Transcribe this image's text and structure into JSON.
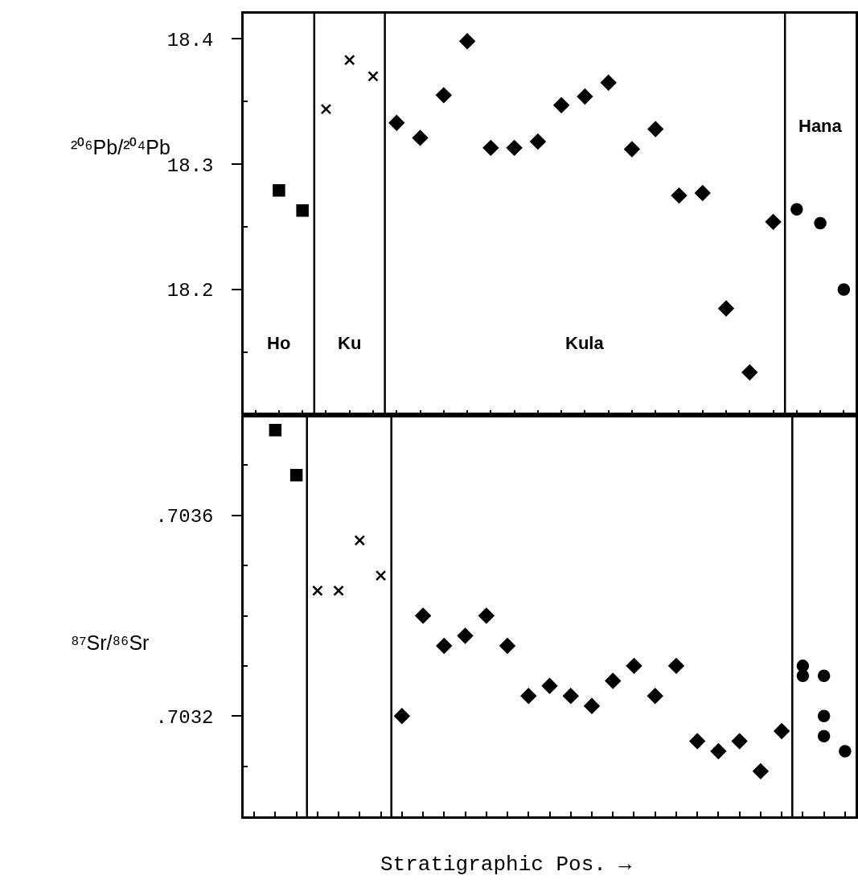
{
  "chart_data": [
    {
      "type": "scatter",
      "ylabel": "²⁰⁶Pb/²⁰⁴Pb",
      "tick_labels": "y",
      "categories": [
        null,
        null,
        null,
        null,
        null,
        null,
        null,
        null,
        null,
        null,
        null,
        null,
        null,
        null,
        null,
        null,
        null,
        null,
        null,
        null,
        null,
        null,
        null,
        null,
        null,
        null
      ],
      "ylim": [
        18.1,
        18.42
      ],
      "yticks": [
        {
          "value": 18.15,
          "label": null
        },
        18.2,
        {
          "value": 18.25,
          "label": null
        },
        18.3,
        {
          "value": 18.35,
          "label": null
        },
        18.4
      ],
      "series": [
        {
          "color": "#000000",
          "marker": "square",
          "values": [
            null,
            18.279,
            18.263,
            null,
            null,
            null,
            null,
            null,
            null,
            null,
            null,
            null,
            null,
            null,
            null,
            null,
            null,
            null,
            null,
            null,
            null,
            null,
            null,
            null,
            null,
            null
          ]
        },
        {
          "color": "#000000",
          "marker": "cross",
          "values": [
            null,
            null,
            null,
            18.344,
            18.383,
            18.37,
            null,
            null,
            null,
            null,
            null,
            null,
            null,
            null,
            null,
            null,
            null,
            null,
            null,
            null,
            null,
            null,
            null,
            null,
            null,
            null
          ]
        },
        {
          "color": "#000000",
          "marker": "diamond",
          "values": [
            null,
            null,
            null,
            null,
            null,
            null,
            18.333,
            18.321,
            18.355,
            18.398,
            18.313,
            18.313,
            18.318,
            18.347,
            18.354,
            18.365,
            18.312,
            18.328,
            18.275,
            18.277,
            18.185,
            18.134,
            18.254,
            null,
            null,
            null
          ]
        },
        {
          "color": "#000000",
          "marker": "circle",
          "values": [
            null,
            null,
            null,
            null,
            null,
            null,
            null,
            null,
            null,
            null,
            null,
            null,
            null,
            null,
            null,
            null,
            null,
            null,
            null,
            null,
            null,
            null,
            null,
            18.264,
            18.253,
            18.2
          ]
        }
      ],
      "annotations": [
        "Ho",
        "Ku",
        "Kula",
        "Hana"
      ]
    },
    {
      "type": "scatter",
      "ylabel": "⁸⁷Sr/⁸⁶Sr",
      "xlabel": "Stratigraphic Pos. →",
      "tick_labels": "y",
      "categories": [
        null,
        null,
        null,
        null,
        null,
        null,
        null,
        null,
        null,
        null,
        null,
        null,
        null,
        null,
        null,
        null,
        null,
        null,
        null,
        null,
        null,
        null,
        null,
        null,
        null,
        null,
        null,
        null,
        null
      ],
      "ylim": [
        0.703,
        0.7038
      ],
      "yticks": [
        {
          "value": 0.7031,
          "label": null
        },
        {
          "value": 0.7032,
          "label": ".7032"
        },
        {
          "value": 0.7033,
          "label": null
        },
        {
          "value": 0.7034,
          "label": null
        },
        {
          "value": 0.7035,
          "label": null
        },
        {
          "value": 0.7036,
          "label": ".7036"
        },
        {
          "value": 0.7037,
          "label": null
        }
      ],
      "series": [
        {
          "color": "#000000",
          "marker": "square",
          "values": [
            null,
            0.70377,
            0.70368,
            null,
            null,
            null,
            null,
            null,
            null,
            null,
            null,
            null,
            null,
            null,
            null,
            null,
            null,
            null,
            null,
            null,
            null,
            null,
            null,
            null,
            null,
            null,
            null,
            null,
            null
          ]
        },
        {
          "color": "#000000",
          "marker": "cross",
          "values": [
            null,
            null,
            null,
            0.70345,
            0.70345,
            0.70355,
            0.70348,
            null,
            null,
            null,
            null,
            null,
            null,
            null,
            null,
            null,
            null,
            null,
            null,
            null,
            null,
            null,
            null,
            null,
            null,
            null,
            null,
            null,
            null
          ]
        },
        {
          "color": "#000000",
          "marker": "diamond",
          "values": [
            null,
            null,
            null,
            null,
            null,
            null,
            null,
            0.7032,
            0.7034,
            0.70334,
            0.70336,
            0.7034,
            0.70334,
            0.70324,
            0.70326,
            0.70324,
            0.70322,
            0.70327,
            0.7033,
            0.70324,
            0.7033,
            0.70315,
            0.70313,
            0.70315,
            0.70309,
            0.70317,
            null,
            null,
            null
          ]
        },
        {
          "color": "#000000",
          "marker": "circle",
          "values": [
            null,
            null,
            null,
            null,
            null,
            null,
            null,
            null,
            null,
            null,
            null,
            null,
            null,
            null,
            null,
            null,
            null,
            null,
            null,
            null,
            null,
            null,
            null,
            null,
            null,
            null,
            0.7033,
            0.70328,
            0.70313
          ]
        },
        {
          "color": "#000000",
          "marker": "circle",
          "values": [
            null,
            null,
            null,
            null,
            null,
            null,
            null,
            null,
            null,
            null,
            null,
            null,
            null,
            null,
            null,
            null,
            null,
            null,
            null,
            null,
            null,
            null,
            null,
            null,
            null,
            null,
            0.70328,
            0.7032,
            null
          ]
        },
        {
          "color": "#000000",
          "marker": "circle",
          "values": [
            null,
            null,
            null,
            null,
            null,
            null,
            null,
            null,
            null,
            null,
            null,
            null,
            null,
            null,
            null,
            null,
            null,
            null,
            null,
            null,
            null,
            null,
            null,
            null,
            null,
            null,
            null,
            0.70316,
            null
          ]
        }
      ]
    }
  ]
}
